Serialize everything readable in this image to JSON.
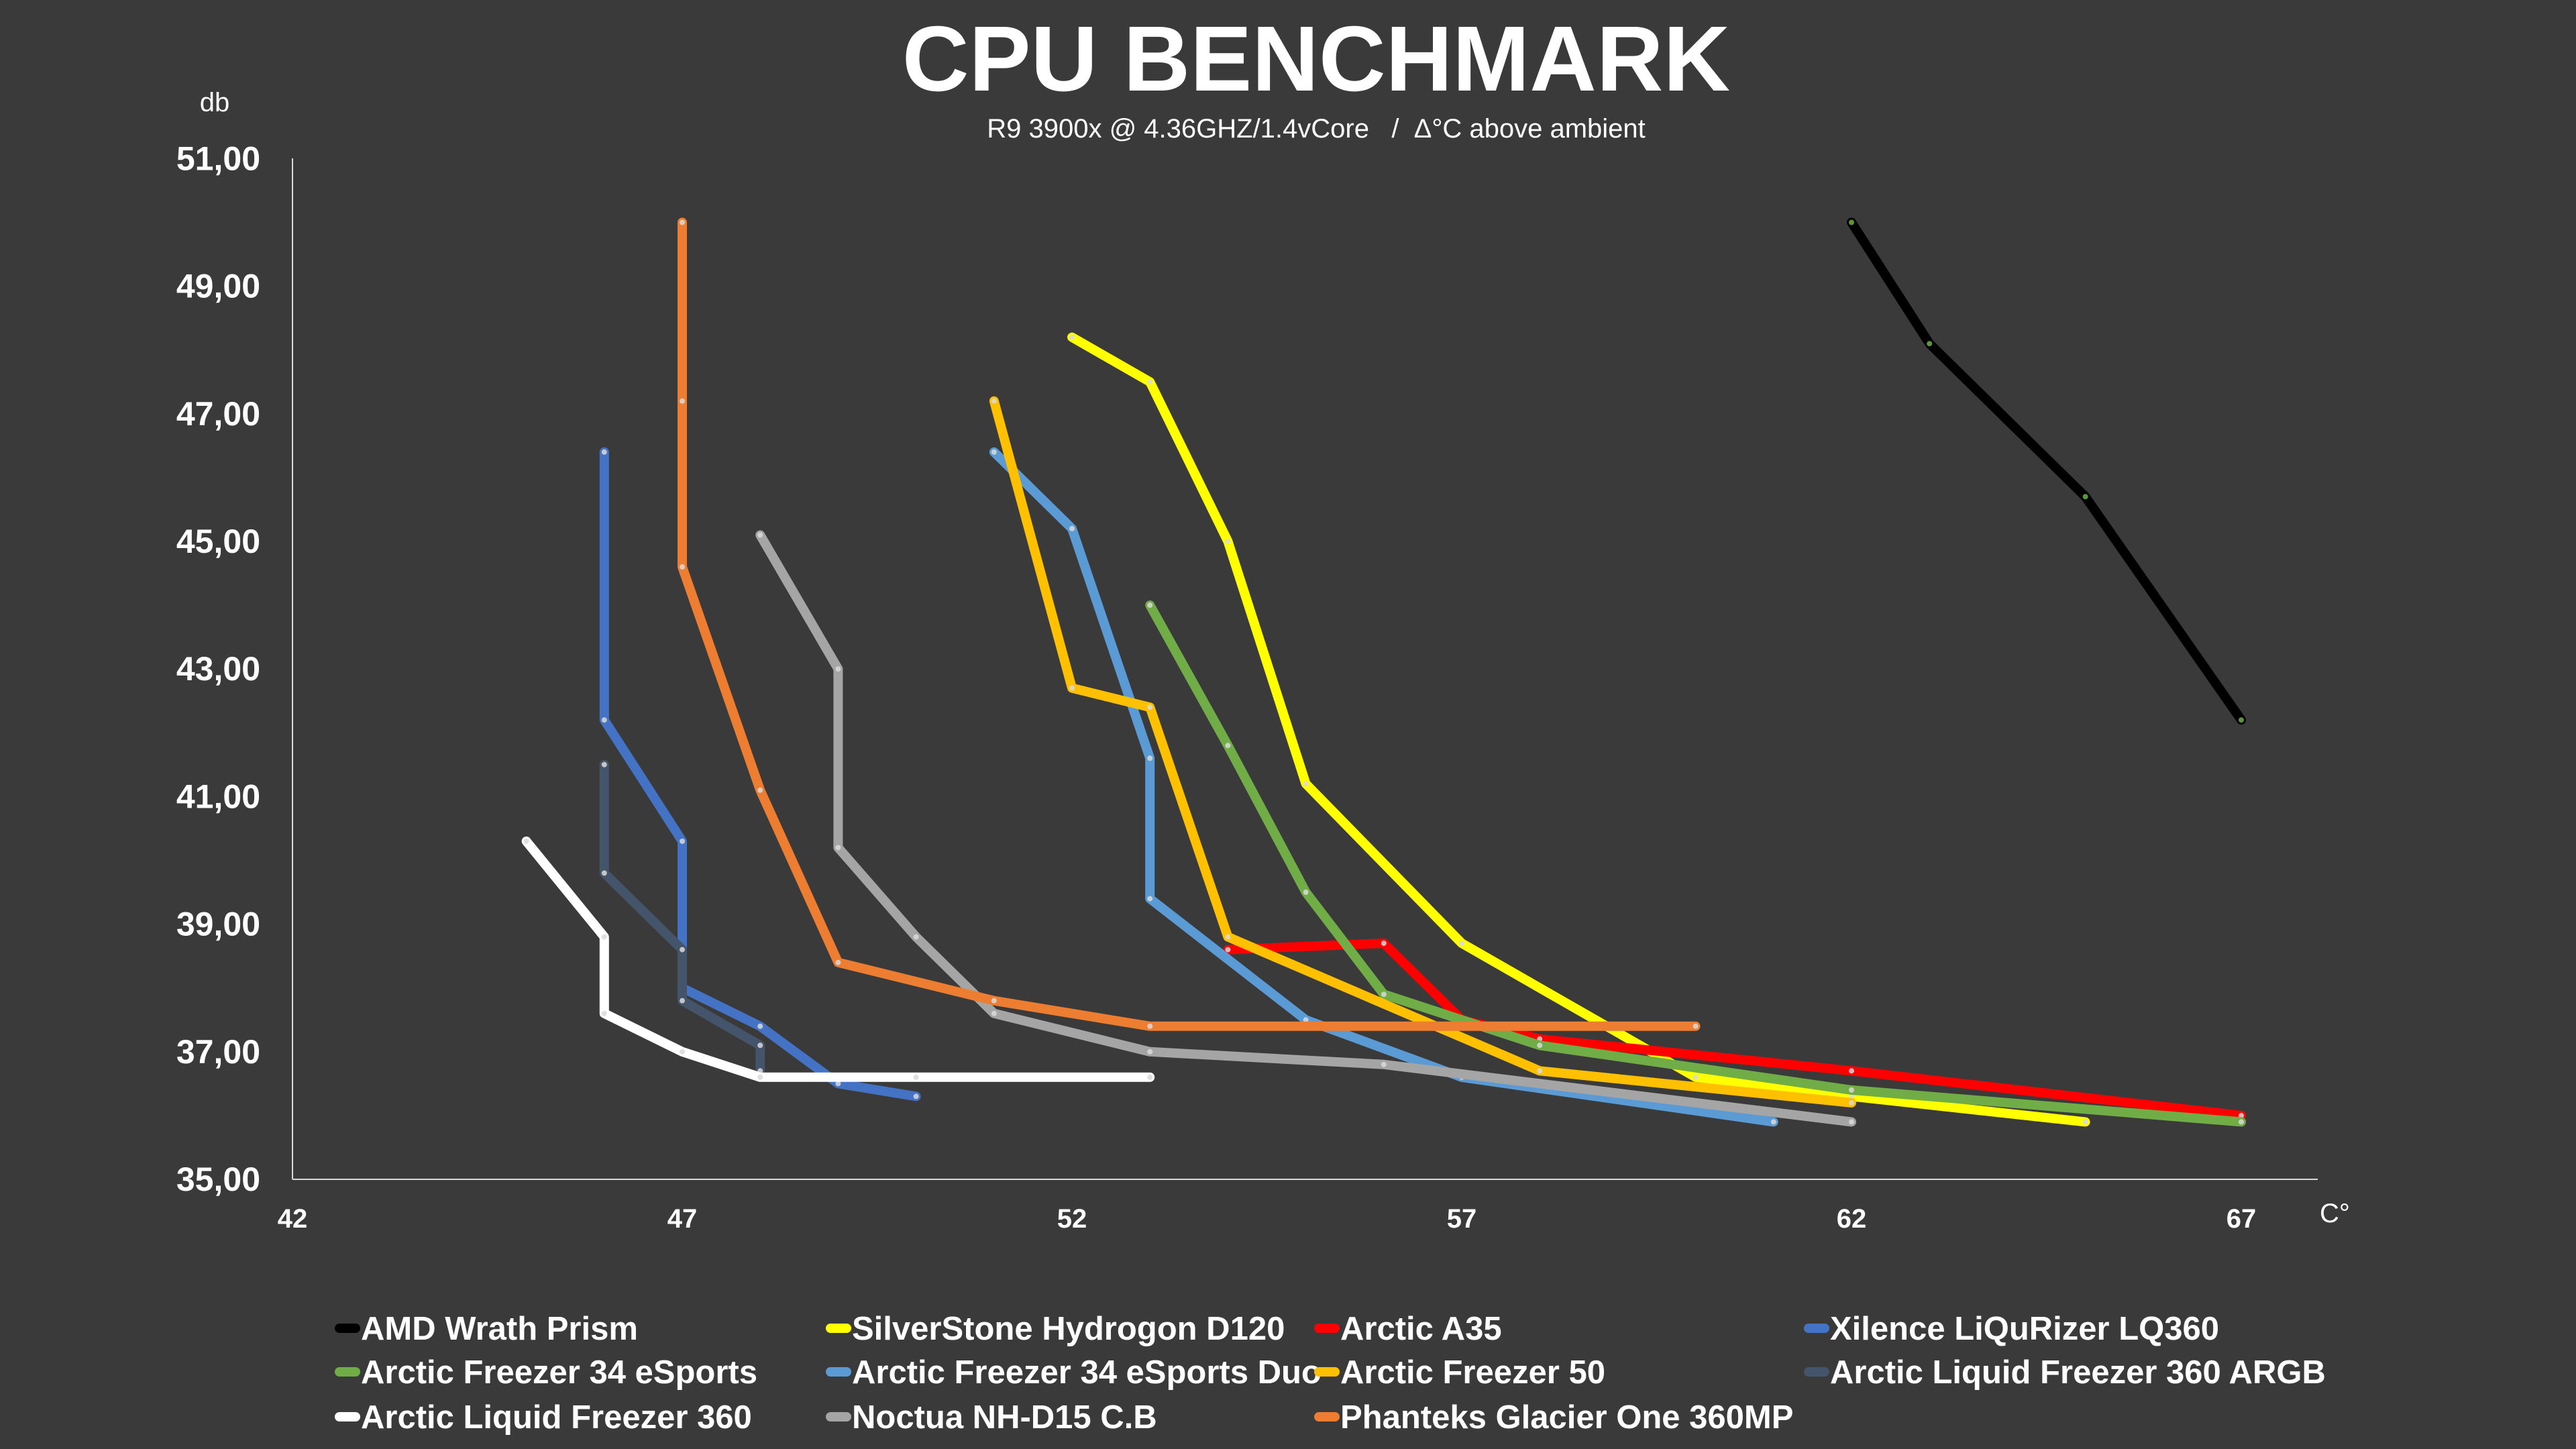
{
  "chart_data": {
    "type": "line",
    "title": "CPU BENCHMARK",
    "subtitle": "R9 3900x @ 4.36GHZ/1.4vCore   /  Δ°C above ambient",
    "xlabel": "C°",
    "ylabel": "db",
    "xlim": [
      42,
      68.5
    ],
    "ylim": [
      35,
      51
    ],
    "x_ticks": [
      {
        "value": 42,
        "label": "42"
      },
      {
        "value": 47,
        "label": "47"
      },
      {
        "value": 52,
        "label": "52"
      },
      {
        "value": 57,
        "label": "57"
      },
      {
        "value": 62,
        "label": "62"
      },
      {
        "value": 67,
        "label": "67"
      }
    ],
    "y_ticks": [
      {
        "value": 35,
        "label": "35,00"
      },
      {
        "value": 37,
        "label": "37,00"
      },
      {
        "value": 39,
        "label": "39,00"
      },
      {
        "value": 41,
        "label": "41,00"
      },
      {
        "value": 43,
        "label": "43,00"
      },
      {
        "value": 45,
        "label": "45,00"
      },
      {
        "value": 47,
        "label": "47,00"
      },
      {
        "value": 49,
        "label": "49,00"
      },
      {
        "value": 51,
        "label": "51,00"
      }
    ],
    "grid": false,
    "legend_position": "bottom",
    "series": [
      {
        "name": "AMD Wrath Prism",
        "color": "#000000",
        "points": [
          [
            62,
            50.0
          ],
          [
            63,
            48.1
          ],
          [
            65,
            45.7
          ],
          [
            67,
            42.2
          ]
        ]
      },
      {
        "name": "SilverStone Hydrogon D120",
        "color": "#ffff00",
        "points": [
          [
            52,
            48.2
          ],
          [
            53,
            47.5
          ],
          [
            54,
            45.0
          ],
          [
            55,
            41.2
          ],
          [
            57,
            38.7
          ],
          [
            60,
            36.6
          ],
          [
            62,
            36.3
          ],
          [
            65,
            35.9
          ]
        ]
      },
      {
        "name": "Arctic A35",
        "color": "#ff0000",
        "points": [
          [
            54,
            38.6
          ],
          [
            56,
            38.7
          ],
          [
            57,
            37.5
          ],
          [
            58,
            37.2
          ],
          [
            62,
            36.7
          ],
          [
            67,
            36.0
          ]
        ]
      },
      {
        "name": "Xilence LiQuRizer LQ360",
        "color": "#4472c4",
        "points": [
          [
            46,
            46.4
          ],
          [
            46,
            42.2
          ],
          [
            47,
            40.3
          ],
          [
            47,
            38.0
          ],
          [
            48,
            37.4
          ],
          [
            49,
            36.5
          ],
          [
            50,
            36.3
          ]
        ]
      },
      {
        "name": "Arctic Freezer 34 eSports",
        "color": "#70ad47",
        "points": [
          [
            53,
            44.0
          ],
          [
            54,
            41.8
          ],
          [
            55,
            39.5
          ],
          [
            56,
            37.9
          ],
          [
            58,
            37.1
          ],
          [
            62,
            36.4
          ],
          [
            67,
            35.9
          ]
        ]
      },
      {
        "name": "Arctic Freezer 34 eSports Duo",
        "color": "#5b9bd5",
        "points": [
          [
            51,
            46.4
          ],
          [
            52,
            45.2
          ],
          [
            53,
            41.6
          ],
          [
            53,
            39.4
          ],
          [
            55,
            37.5
          ],
          [
            57,
            36.6
          ],
          [
            61,
            35.9
          ]
        ]
      },
      {
        "name": "Arctic Freezer 50",
        "color": "#ffc000",
        "points": [
          [
            51,
            47.2
          ],
          [
            52,
            42.7
          ],
          [
            53,
            42.4
          ],
          [
            54,
            38.8
          ],
          [
            58,
            36.7
          ],
          [
            62,
            36.2
          ]
        ]
      },
      {
        "name": "Arctic Liquid Freezer 360 ARGB",
        "color": "#44546a",
        "points": [
          [
            46,
            41.5
          ],
          [
            46,
            39.8
          ],
          [
            47,
            38.6
          ],
          [
            47,
            37.8
          ],
          [
            48,
            37.1
          ],
          [
            48,
            36.7
          ]
        ]
      },
      {
        "name": "Arctic Liquid Freezer 360",
        "color": "#ffffff",
        "points": [
          [
            45,
            40.3
          ],
          [
            46,
            38.8
          ],
          [
            46,
            37.6
          ],
          [
            47,
            37.0
          ],
          [
            48,
            36.6
          ],
          [
            50,
            36.6
          ],
          [
            53,
            36.6
          ]
        ]
      },
      {
        "name": "Noctua NH-D15 C.B",
        "color": "#a5a5a5",
        "points": [
          [
            48,
            45.1
          ],
          [
            49,
            43.0
          ],
          [
            49,
            40.2
          ],
          [
            50,
            38.8
          ],
          [
            51,
            37.6
          ],
          [
            53,
            37.0
          ],
          [
            56,
            36.8
          ],
          [
            62,
            35.9
          ]
        ]
      },
      {
        "name": "Phanteks Glacier One 360MP",
        "color": "#ed7d31",
        "points": [
          [
            47,
            50.0
          ],
          [
            47,
            47.2
          ],
          [
            47,
            44.6
          ],
          [
            48,
            41.1
          ],
          [
            49,
            38.4
          ],
          [
            51,
            37.8
          ],
          [
            53,
            37.4
          ],
          [
            60,
            37.4
          ]
        ]
      }
    ]
  }
}
